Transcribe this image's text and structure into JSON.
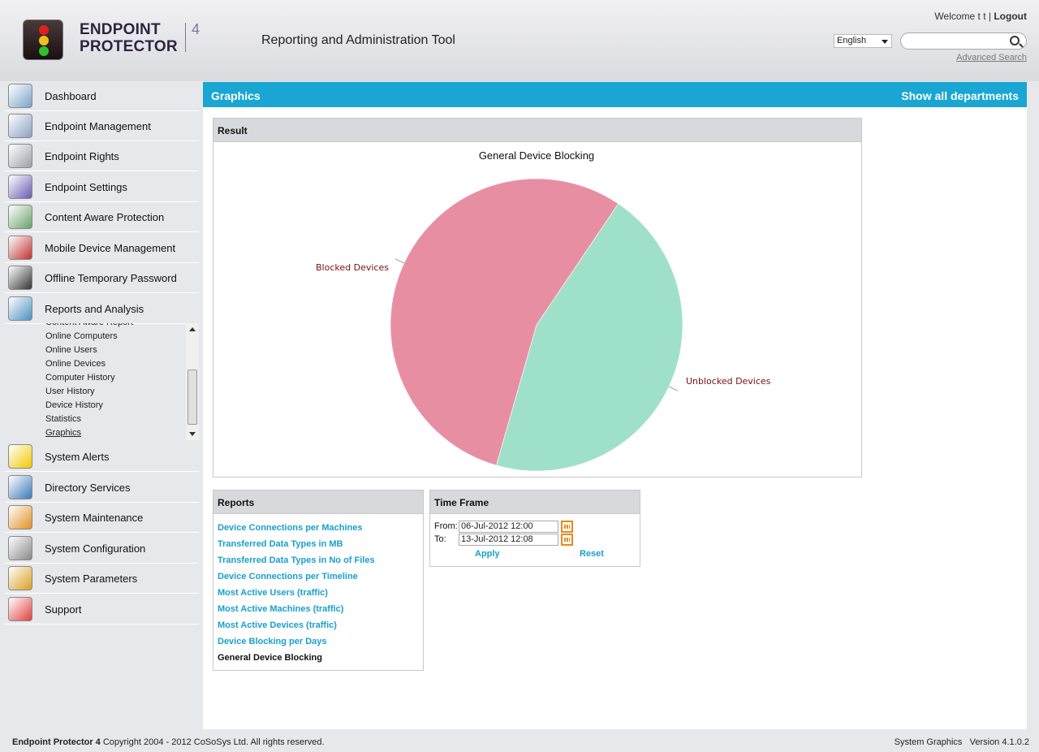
{
  "header": {
    "logo_line1": "ENDPOINT",
    "logo_line2": "PROTECTOR",
    "logo_version": "4",
    "app_title": "Reporting and Administration Tool",
    "welcome_prefix": "Welcome t t | ",
    "logout_label": "Logout",
    "language": "English",
    "search_placeholder": "",
    "advanced_search": "Advanced Search"
  },
  "sidebar": {
    "items": [
      {
        "label": "Dashboard",
        "icon": "dashboard-icon"
      },
      {
        "label": "Endpoint Management",
        "icon": "endpoint-management-icon"
      },
      {
        "label": "Endpoint Rights",
        "icon": "keys-icon"
      },
      {
        "label": "Endpoint Settings",
        "icon": "tools-icon"
      },
      {
        "label": "Content Aware Protection",
        "icon": "content-aware-icon"
      },
      {
        "label": "Mobile Device Management",
        "icon": "mobile-device-icon"
      },
      {
        "label": "Offline Temporary Password",
        "icon": "calculator-icon"
      },
      {
        "label": "Reports and Analysis",
        "icon": "reports-monitor-icon"
      },
      {
        "label": "System Alerts",
        "icon": "warning-icon"
      },
      {
        "label": "Directory Services",
        "icon": "directory-icon"
      },
      {
        "label": "System Maintenance",
        "icon": "broom-icon"
      },
      {
        "label": "System Configuration",
        "icon": "gears-icon"
      },
      {
        "label": "System Parameters",
        "icon": "ruler-icon"
      },
      {
        "label": "Support",
        "icon": "lifebuoy-icon"
      }
    ],
    "sub_items": [
      "Content Aware Report",
      "Online Computers",
      "Online Users",
      "Online Devices",
      "Computer History",
      "User History",
      "Device History",
      "Statistics",
      "Graphics"
    ],
    "active_sub_item": "Graphics"
  },
  "main": {
    "title": "Graphics",
    "show_all": "Show all departments",
    "result_title": "Result",
    "reports_title": "Reports",
    "reports": [
      "Device Connections per Machines",
      "Transferred Data Types in MB",
      "Transferred Data Types in No of Files",
      "Device Connections per Timeline",
      "Most Active Users (traffic)",
      "Most Active Machines (traffic)",
      "Most Active Devices (traffic)",
      "Device Blocking per Days",
      "General Device Blocking"
    ],
    "current_report": "General Device Blocking",
    "timeframe": {
      "title": "Time Frame",
      "from_label": "From:",
      "from_value": "06-Jul-2012 12:00",
      "to_label": "To:",
      "to_value": "13-Jul-2012 12:08",
      "apply_label": "Apply",
      "reset_label": "Reset"
    }
  },
  "chart_data": {
    "type": "pie",
    "title": "General Device Blocking",
    "slices": [
      {
        "label": "Unblocked Devices",
        "value": 45,
        "color": "#9fe0cb"
      },
      {
        "label": "Blocked Devices",
        "value": 55,
        "color": "#e88ea3"
      }
    ],
    "legend": "none",
    "label_color": "#7a1010"
  },
  "footer": {
    "brand": "Endpoint Protector 4",
    "copyright": " Copyright 2004 - 2012 CoSoSys Ltd. All rights reserved.",
    "section": "System Graphics",
    "version": "Version 4.1.0.2"
  },
  "colors": {
    "accent": "#1aa6d3",
    "link": "#19a0cc",
    "panel_header": "#d8d9dc"
  }
}
